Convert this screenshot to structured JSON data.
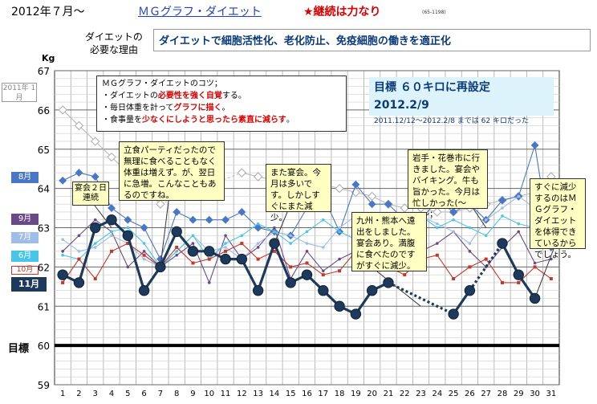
{
  "header": {
    "date": "2012年７月〜",
    "link": "ＭＧグラフ・ダイエット",
    "slogan": "★継続は力なり",
    "code": "(65-1198)",
    "need_label_line1": "ダイエットの",
    "need_label_line2": "必要な理由",
    "need_text": "ダイエットで細胞活性化、老化防止、免疫細胞の働きを適正化"
  },
  "tips": {
    "title": "ＭＧグラフ・ダイエットのコツ；",
    "l1a": "・ダイエットの",
    "l1b": "必要性を強く自覚",
    "l1c": "する。",
    "l2a": "・毎日体重を計って",
    "l2b": "グラフに描く",
    "l2c": "。",
    "l3a": "・食事量を",
    "l3b": "少なくにしようと思ったら素直に減らす",
    "l3c": "。"
  },
  "goal_note": {
    "line1": "目標 ６０キロに再設定 2012.2/9",
    "line2": "2011.12/12〜2012.2/8 までは 62 キロだった"
  },
  "callouts": {
    "c1": "立食パーティだったので無理に食べることもなく体重は増えず。が、翌日に急増。こんなこともあるのですね。",
    "c2": "また宴会。今月は多いです。しかしすぐにまた減少。",
    "c3": "岩手・花巻市に行きました。宴会やバイキング。牛も旨かった。今月は忙しかった(〜＿〜；",
    "c4": "九州・熊本へ遠出をしました。宴会あり。満腹に食べたのですがすぐに減少。",
    "c5": "すぐに減少するのはＭＧグラフ・ダイエットを体得できているからでしょう。",
    "c6": "宴会２日連続"
  },
  "legend_tags": {
    "y2011": "2011年 1月",
    "aug": "8月",
    "sep": "9月",
    "jul": "7月",
    "jun": "6月",
    "oct": "10月",
    "nov": "11月"
  },
  "goal_label": "目標",
  "chart_data": {
    "type": "line",
    "ylabel": "Kg",
    "ylim": [
      59,
      67
    ],
    "yticks": [
      59,
      60,
      61,
      62,
      63,
      64,
      65,
      66,
      67
    ],
    "x": [
      1,
      2,
      3,
      4,
      5,
      6,
      7,
      8,
      9,
      10,
      11,
      12,
      13,
      14,
      15,
      16,
      17,
      18,
      19,
      20,
      21,
      22,
      23,
      24,
      25,
      26,
      27,
      28,
      29,
      30,
      31
    ],
    "goal_line": 60,
    "series": [
      {
        "name": "2011年1月",
        "color": "#bbbbbb",
        "values": [
          66.0,
          65.6,
          65.2,
          64.8,
          64.4,
          64.0,
          63.6,
          null,
          null,
          null,
          null,
          64.4,
          64.3,
          64.2,
          64.2,
          64.1,
          64.1,
          64.0,
          63.9,
          63.8,
          63.6,
          63.5,
          63.5,
          63.4,
          63.4,
          63.5,
          63.6,
          63.7,
          63.8,
          63.9,
          64.3
        ]
      },
      {
        "name": "8月",
        "color": "#4a77c5",
        "values": [
          64.2,
          64.4,
          64.3,
          63.5,
          63.2,
          63.0,
          62.2,
          63.4,
          63.2,
          63.2,
          63.2,
          63.4,
          63.0,
          62.9,
          62.8,
          63.5,
          63.8,
          62.9,
          64.1,
          63.6,
          63.6,
          63.2,
          63.2,
          63.7,
          63.4,
          63.6,
          63.2,
          63.7,
          63.8,
          65.1,
          62.5
        ]
      },
      {
        "name": "9月",
        "color": "#6a4a86",
        "values": [
          62.4,
          62.8,
          63.2,
          62.9,
          62.0,
          62.4,
          62.0,
          62.3,
          62.6,
          61.6,
          62.8,
          62.2,
          62.5,
          63.0,
          61.7,
          62.4,
          61.9,
          62.2,
          62.4,
          63.3,
          62.5,
          62.8,
          62.4,
          62.6,
          62.9,
          62.4,
          62.0,
          62.5,
          62.9,
          62.1,
          62.2
        ]
      },
      {
        "name": "7月",
        "color": "#9fbde6",
        "values": [
          62.7,
          62.4,
          62.5,
          62.8,
          62.6,
          62.2,
          62.0,
          62.4,
          62.8,
          62.4,
          62.5,
          62.2,
          62.6,
          62.9,
          62.8,
          62.6,
          62.5,
          63.0,
          63.3,
          62.9,
          63.0,
          63.3,
          63.3,
          63.1,
          62.9,
          62.6,
          63.2,
          63.5,
          63.8,
          63.5,
          null
        ]
      },
      {
        "name": "6月",
        "color": "#48c6ea",
        "values": [
          62.3,
          62.2,
          62.6,
          62.9,
          63.0,
          62.6,
          62.0,
          62.4,
          62.8,
          62.2,
          62.6,
          62.8,
          63.1,
          62.9,
          62.6,
          62.9,
          63.2,
          62.9,
          62.7,
          63.0,
          63.1,
          63.2,
          63.3,
          63.0,
          63.2,
          63.0,
          62.8,
          63.3,
          63.1,
          63.0,
          null
        ]
      },
      {
        "name": "10月",
        "color": "#c0392b",
        "values": [
          61.6,
          62.2,
          61.7,
          62.4,
          62.6,
          62.3,
          62.0,
          62.5,
          62.1,
          62.2,
          62.4,
          62.6,
          62.2,
          62.4,
          62.0,
          62.1,
          61.8,
          61.9,
          62.4,
          62.2,
          62.0,
          61.8,
          62.2,
          62.3,
          61.7,
          62.0,
          62.2,
          61.6,
          61.6,
          62.0,
          61.7
        ]
      },
      {
        "name": "11月",
        "color": "#1d3a5c",
        "values": [
          61.8,
          61.6,
          63.0,
          63.2,
          62.8,
          61.4,
          62.0,
          62.9,
          62.4,
          62.4,
          62.2,
          62.2,
          61.4,
          62.6,
          61.6,
          61.8,
          61.4,
          61.0,
          60.8,
          61.4,
          61.6,
          null,
          null,
          null,
          60.8,
          61.4,
          null,
          62.6,
          61.8,
          61.2,
          null
        ],
        "dotted_segments": [
          [
            21,
            25
          ],
          [
            26,
            28
          ]
        ]
      }
    ],
    "grid": true
  }
}
